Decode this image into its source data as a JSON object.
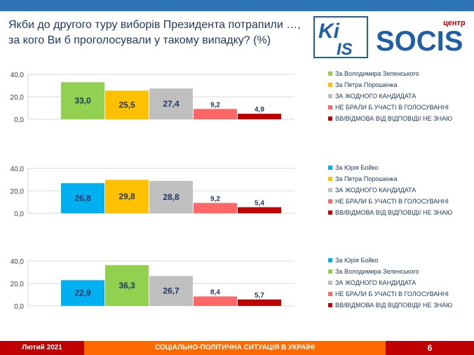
{
  "title": "Якби до другого туру виборів Президента потрапили …, за кого Ви б проголосували у такому випадку? (%)",
  "logos": {
    "kiis_text_top": "Ki",
    "kiis_text_bottom": "IS",
    "socis_small": "центр",
    "socis_main": "SOCIS"
  },
  "colors": {
    "zelensky": "#92d050",
    "poroshenko": "#ffc000",
    "boyko": "#00b0f0",
    "none": "#bfbfbf",
    "not_vote": "#ff6666",
    "dk": "#c00000",
    "bar_label_dark": "#1f3864"
  },
  "chart_data": [
    {
      "type": "bar",
      "title": "",
      "xlabel": "",
      "ylabel": "",
      "ylim": [
        0,
        40
      ],
      "yticks": [
        "0,0",
        "20,0",
        "40,0"
      ],
      "categories": [
        "За Володимира Зеленського",
        "За Петра Порошенка",
        "ЗА ЖОДНОГО КАНДИДАТА",
        "НЕ БРАЛИ Б УЧАСТІ В ГОЛОСУВАННІ",
        "ВВ/ВІДМОВА ВІД ВІДПОВІДІ/ НЕ ЗНАЮ"
      ],
      "values": [
        33.0,
        25.5,
        27.4,
        9.2,
        4.9
      ],
      "labels": [
        "33,0",
        "25,5",
        "27,4",
        "9,2",
        "4,9"
      ],
      "color_keys": [
        "zelensky",
        "poroshenko",
        "none",
        "not_vote",
        "dk"
      ],
      "legend": "right"
    },
    {
      "type": "bar",
      "title": "",
      "xlabel": "",
      "ylabel": "",
      "ylim": [
        0,
        40
      ],
      "yticks": [
        "0,0",
        "20,0",
        "40,0"
      ],
      "categories": [
        "За Юрія Бойко",
        "За Петра Порошенка",
        "ЗА ЖОДНОГО КАНДИДАТА",
        "НЕ БРАЛИ Б УЧАСТІ В ГОЛОСУВАННІ",
        "ВВ/ВІДМОВА ВІД ВІДПОВІДІ/ НЕ ЗНАЮ"
      ],
      "values": [
        26.8,
        29.8,
        28.8,
        9.2,
        5.4
      ],
      "labels": [
        "26,8",
        "29,8",
        "28,8",
        "9,2",
        "5,4"
      ],
      "color_keys": [
        "boyko",
        "poroshenko",
        "none",
        "not_vote",
        "dk"
      ],
      "legend": "right"
    },
    {
      "type": "bar",
      "title": "",
      "xlabel": "",
      "ylabel": "",
      "ylim": [
        0,
        40
      ],
      "yticks": [
        "0,0",
        "20,0",
        "40,0"
      ],
      "categories": [
        "За Юрія Бойко",
        "За Володимира Зеленського",
        "ЗА ЖОДНОГО КАНДИДАТА",
        "НЕ БРАЛИ Б УЧАСТІ В ГОЛОСУВАННІ",
        "ВВ/ВІДМОВА ВІД ВІДПОВІДІ/ НЕ ЗНАЮ"
      ],
      "values": [
        22.9,
        36.3,
        26.7,
        8.4,
        5.7
      ],
      "labels": [
        "22,9",
        "36,3",
        "26,7",
        "8,4",
        "5,7"
      ],
      "color_keys": [
        "boyko",
        "zelensky",
        "none",
        "not_vote",
        "dk"
      ],
      "legend": "right"
    }
  ],
  "footer": {
    "date": "Лютий 2021",
    "subtitle": "СОЦІАЛЬНО-ПОЛІТИЧНА СИТУАЦІЯ В УКРАЇНІ",
    "page": "6"
  }
}
